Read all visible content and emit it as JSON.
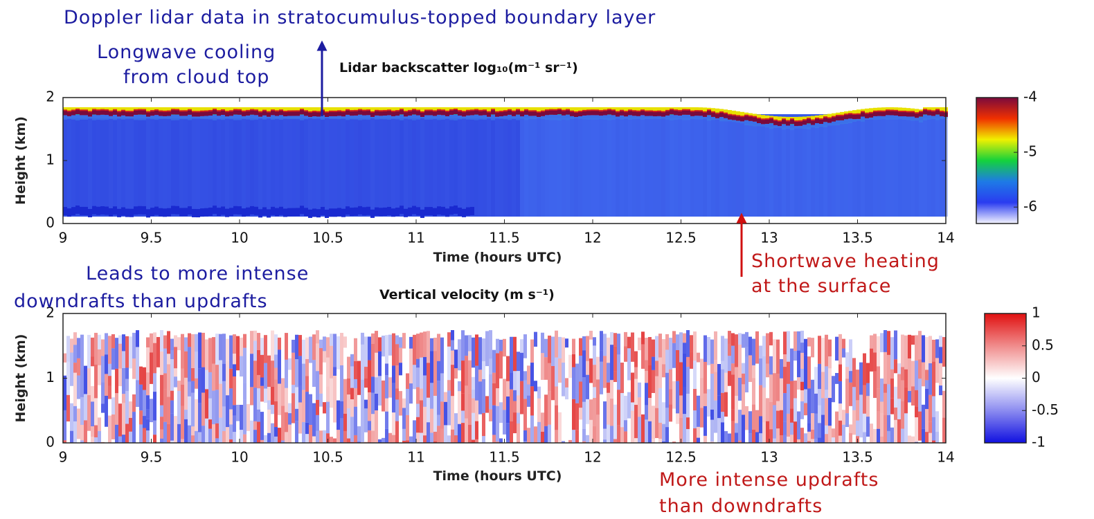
{
  "title": "Doppler lidar data in stratocumulus-topped boundary layer",
  "annotations": [
    {
      "lines": [
        "Longwave cooling",
        "from cloud top"
      ],
      "color": "#1c1ca0"
    },
    {
      "lines": [
        "Shortwave heating",
        "at the surface"
      ],
      "color": "#c01818"
    },
    {
      "lines": [
        "Leads to more intense",
        "downdrafts than updrafts"
      ],
      "color": "#1c1ca0"
    },
    {
      "lines": [
        "More intense updrafts",
        "than downdrafts"
      ],
      "color": "#c01818"
    }
  ],
  "chart_data": [
    {
      "type": "heatmap",
      "title": "Lidar backscatter log₁₀(m⁻¹ sr⁻¹)",
      "xlabel": "Time (hours UTC)",
      "ylabel": "Height (km)",
      "xlim": [
        9,
        14
      ],
      "xticks": [
        9,
        9.5,
        10,
        10.5,
        11,
        11.5,
        12,
        12.5,
        13,
        13.5,
        14
      ],
      "ylim": [
        0,
        2
      ],
      "yticks": [
        0,
        1,
        2
      ],
      "colorbar": {
        "lim": [
          -6.3,
          -4
        ],
        "ticks": [
          -6,
          -5,
          -4
        ],
        "colors": [
          "#f4f4ff",
          "#2a3cf0",
          "#1e7ae6",
          "#14d23c",
          "#f0f000",
          "#f03000",
          "#7a0a3c"
        ]
      }
    },
    {
      "type": "heatmap",
      "title": "Vertical velocity (m s⁻¹)",
      "xlabel": "Time (hours UTC)",
      "ylabel": "Height (km)",
      "xlim": [
        9,
        14
      ],
      "xticks": [
        9,
        9.5,
        10,
        10.5,
        11,
        11.5,
        12,
        12.5,
        13,
        13.5,
        14
      ],
      "ylim": [
        0,
        2
      ],
      "yticks": [
        0,
        1,
        2
      ],
      "colorbar": {
        "lim": [
          -1,
          1
        ],
        "ticks": [
          -1,
          -0.5,
          0,
          0.5,
          1
        ],
        "colors": [
          "#1010e0",
          "#8c8cf0",
          "#ffffff",
          "#f08c8c",
          "#e01010"
        ]
      }
    }
  ]
}
